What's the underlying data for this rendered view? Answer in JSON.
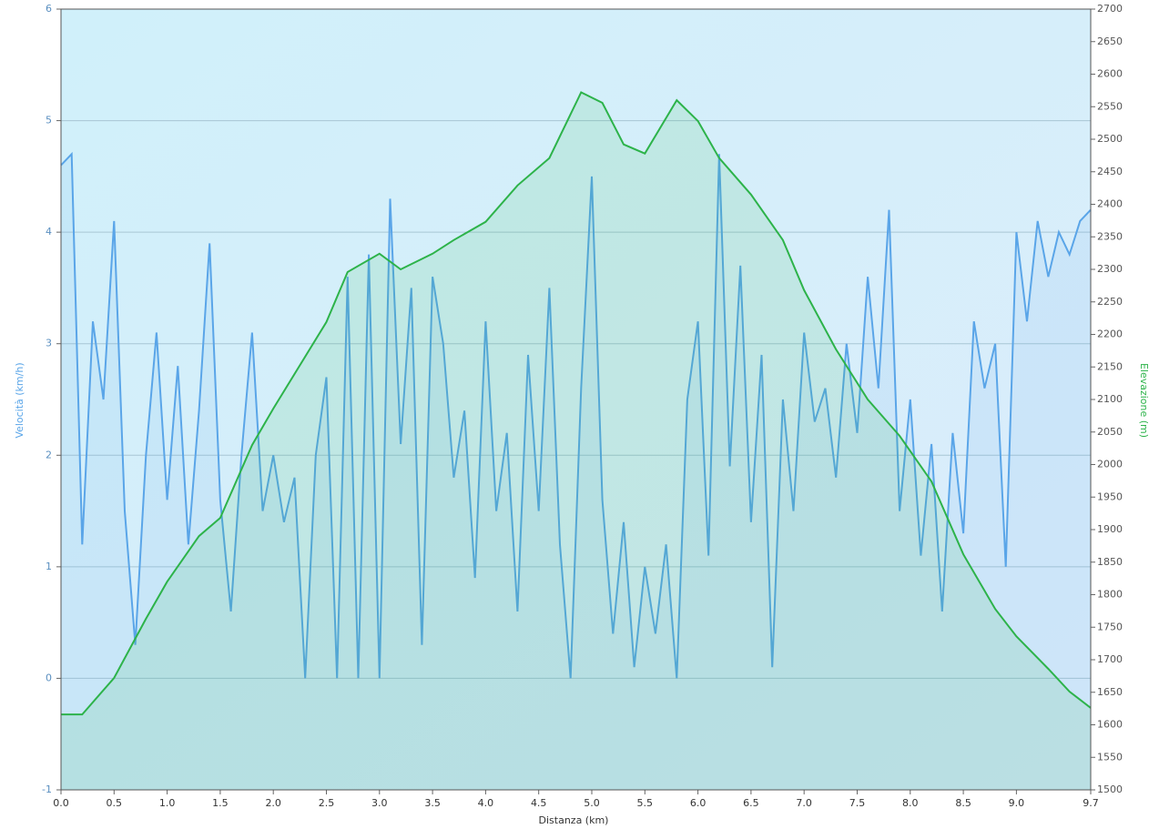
{
  "chart_data": {
    "type": "line",
    "xlabel": "Distanza  (km)",
    "ylabel": "Velocità (km/h)",
    "y2label": "Elevazione (m)",
    "xlim": [
      0,
      9.7
    ],
    "ylim": [
      -1,
      6
    ],
    "y2lim": [
      1500,
      2700
    ],
    "xticks": [
      {
        "value": 0,
        "label": "0.0"
      },
      0.5,
      {
        "value": 1,
        "label": "1.0"
      },
      1.5,
      {
        "value": 2,
        "label": "2.0"
      },
      2.5,
      {
        "value": 3,
        "label": "3.0"
      },
      3.5,
      {
        "value": 4,
        "label": "4.0"
      },
      4.5,
      {
        "value": 5,
        "label": "5.0"
      },
      5.5,
      {
        "value": 6,
        "label": "6.0"
      },
      6.5,
      {
        "value": 7,
        "label": "7.0"
      },
      7.5,
      {
        "value": 8,
        "label": "8.0"
      },
      8.5,
      {
        "value": 9,
        "label": "9.0"
      },
      9.7
    ],
    "yticks": [
      -1,
      0,
      1,
      2,
      3,
      4,
      5,
      6
    ],
    "y2ticks": [
      1500,
      1550,
      1600,
      1650,
      1700,
      1750,
      1800,
      1850,
      1900,
      1950,
      2000,
      2050,
      2100,
      2150,
      2200,
      2250,
      2300,
      2350,
      2400,
      2450,
      2500,
      2550,
      2600,
      2650,
      2700
    ],
    "grid": true,
    "series": [
      {
        "name": "Velocità",
        "color": "#5aa5e8",
        "x": [
          0,
          0.1,
          0.2,
          0.3,
          0.4,
          0.5,
          0.6,
          0.7,
          0.8,
          0.9,
          1.0,
          1.1,
          1.2,
          1.3,
          1.4,
          1.5,
          1.6,
          1.7,
          1.8,
          1.9,
          2.0,
          2.1,
          2.2,
          2.3,
          2.4,
          2.5,
          2.6,
          2.7,
          2.8,
          2.9,
          3.0,
          3.1,
          3.2,
          3.3,
          3.4,
          3.5,
          3.6,
          3.7,
          3.8,
          3.9,
          4.0,
          4.1,
          4.2,
          4.3,
          4.4,
          4.5,
          4.6,
          4.7,
          4.8,
          4.9,
          5.0,
          5.1,
          5.2,
          5.3,
          5.4,
          5.5,
          5.6,
          5.7,
          5.8,
          5.9,
          6.0,
          6.1,
          6.2,
          6.3,
          6.4,
          6.5,
          6.6,
          6.7,
          6.8,
          6.9,
          7.0,
          7.1,
          7.2,
          7.3,
          7.4,
          7.5,
          7.6,
          7.7,
          7.8,
          7.9,
          8.0,
          8.1,
          8.2,
          8.3,
          8.4,
          8.5,
          8.6,
          8.7,
          8.8,
          8.9,
          9.0,
          9.1,
          9.2,
          9.3,
          9.4,
          9.5,
          9.6,
          9.7
        ],
        "values": [
          4.6,
          4.7,
          1.2,
          3.2,
          2.5,
          4.1,
          1.5,
          0.3,
          2.0,
          3.1,
          1.6,
          2.8,
          1.2,
          2.4,
          3.9,
          1.6,
          0.6,
          2.0,
          3.1,
          1.5,
          2.0,
          1.4,
          1.8,
          0.0,
          2.0,
          2.7,
          0.0,
          3.6,
          0.0,
          3.8,
          0.0,
          4.3,
          2.1,
          3.5,
          0.3,
          3.6,
          3.0,
          1.8,
          2.4,
          0.9,
          3.2,
          1.5,
          2.2,
          0.6,
          2.9,
          1.5,
          3.5,
          1.2,
          0.0,
          2.6,
          4.5,
          1.6,
          0.4,
          1.4,
          0.1,
          1.0,
          0.4,
          1.2,
          0.0,
          2.5,
          3.2,
          1.1,
          4.7,
          1.9,
          3.7,
          1.4,
          2.9,
          0.1,
          2.5,
          1.5,
          3.1,
          2.3,
          2.6,
          1.8,
          3.0,
          2.2,
          3.6,
          2.6,
          4.2,
          1.5,
          2.5,
          1.1,
          2.1,
          0.6,
          2.2,
          1.3,
          3.2,
          2.6,
          3.0,
          1.0,
          4.0,
          3.2,
          4.1,
          3.6,
          4.0,
          3.8,
          4.1,
          4.2
        ]
      },
      {
        "name": "Elevazione",
        "color": "#2db34a",
        "axis": "y2",
        "x": [
          0,
          0.2,
          0.5,
          0.8,
          1.0,
          1.3,
          1.5,
          1.8,
          2.0,
          2.5,
          2.7,
          3.0,
          3.2,
          3.5,
          3.7,
          4.0,
          4.3,
          4.6,
          4.9,
          5.1,
          5.3,
          5.5,
          5.8,
          6.0,
          6.2,
          6.5,
          6.8,
          7.0,
          7.3,
          7.6,
          7.9,
          8.2,
          8.5,
          8.8,
          9.0,
          9.3,
          9.5,
          9.7
        ],
        "values": [
          1616,
          1616,
          1672,
          1763,
          1820,
          1890,
          1918,
          2030,
          2086,
          2219,
          2296,
          2324,
          2300,
          2324,
          2345,
          2373,
          2429,
          2471,
          2572,
          2556,
          2492,
          2478,
          2560,
          2528,
          2471,
          2415,
          2345,
          2268,
          2177,
          2100,
          2044,
          1974,
          1862,
          1778,
          1736,
          1686,
          1651,
          1626
        ]
      }
    ]
  }
}
